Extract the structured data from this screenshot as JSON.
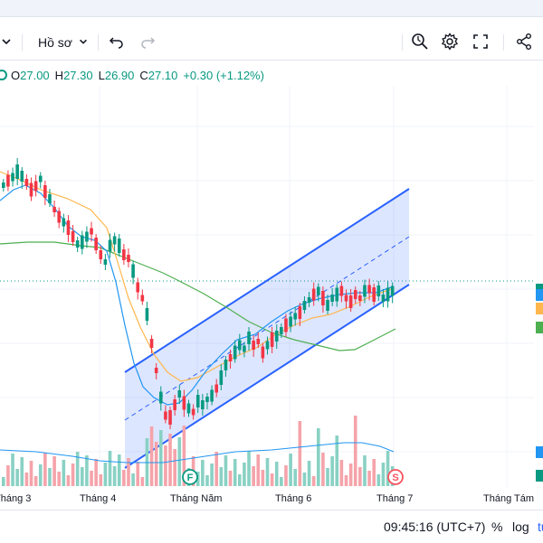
{
  "toolbar": {
    "profile_label": "Hồ sơ"
  },
  "ohlc": {
    "open_key": "O",
    "open": "27.00",
    "high_key": "H",
    "high": "27.30",
    "low_key": "L",
    "low": "26.90",
    "close_key": "C",
    "close": "27.10",
    "change": "+0.30 (+1.12%)"
  },
  "colors": {
    "up": "#089981",
    "down": "#f23645",
    "ma_fast": "#2196f3",
    "ma_mid": "#ffb74d",
    "ma_slow": "#4caf50",
    "channel": "#2962ff"
  },
  "chart_data": {
    "type": "candlestick",
    "x_labels": [
      "Tháng 3",
      "Tháng 4",
      "Tháng Năm",
      "Tháng 6",
      "Tháng 7",
      "Tháng Tám"
    ],
    "markers": [
      {
        "label": "F"
      },
      {
        "label": "S"
      }
    ]
  },
  "bottombar": {
    "time": "09:45:16 (UTC+7)",
    "percent": "%",
    "log": "log",
    "auto": "tu"
  }
}
